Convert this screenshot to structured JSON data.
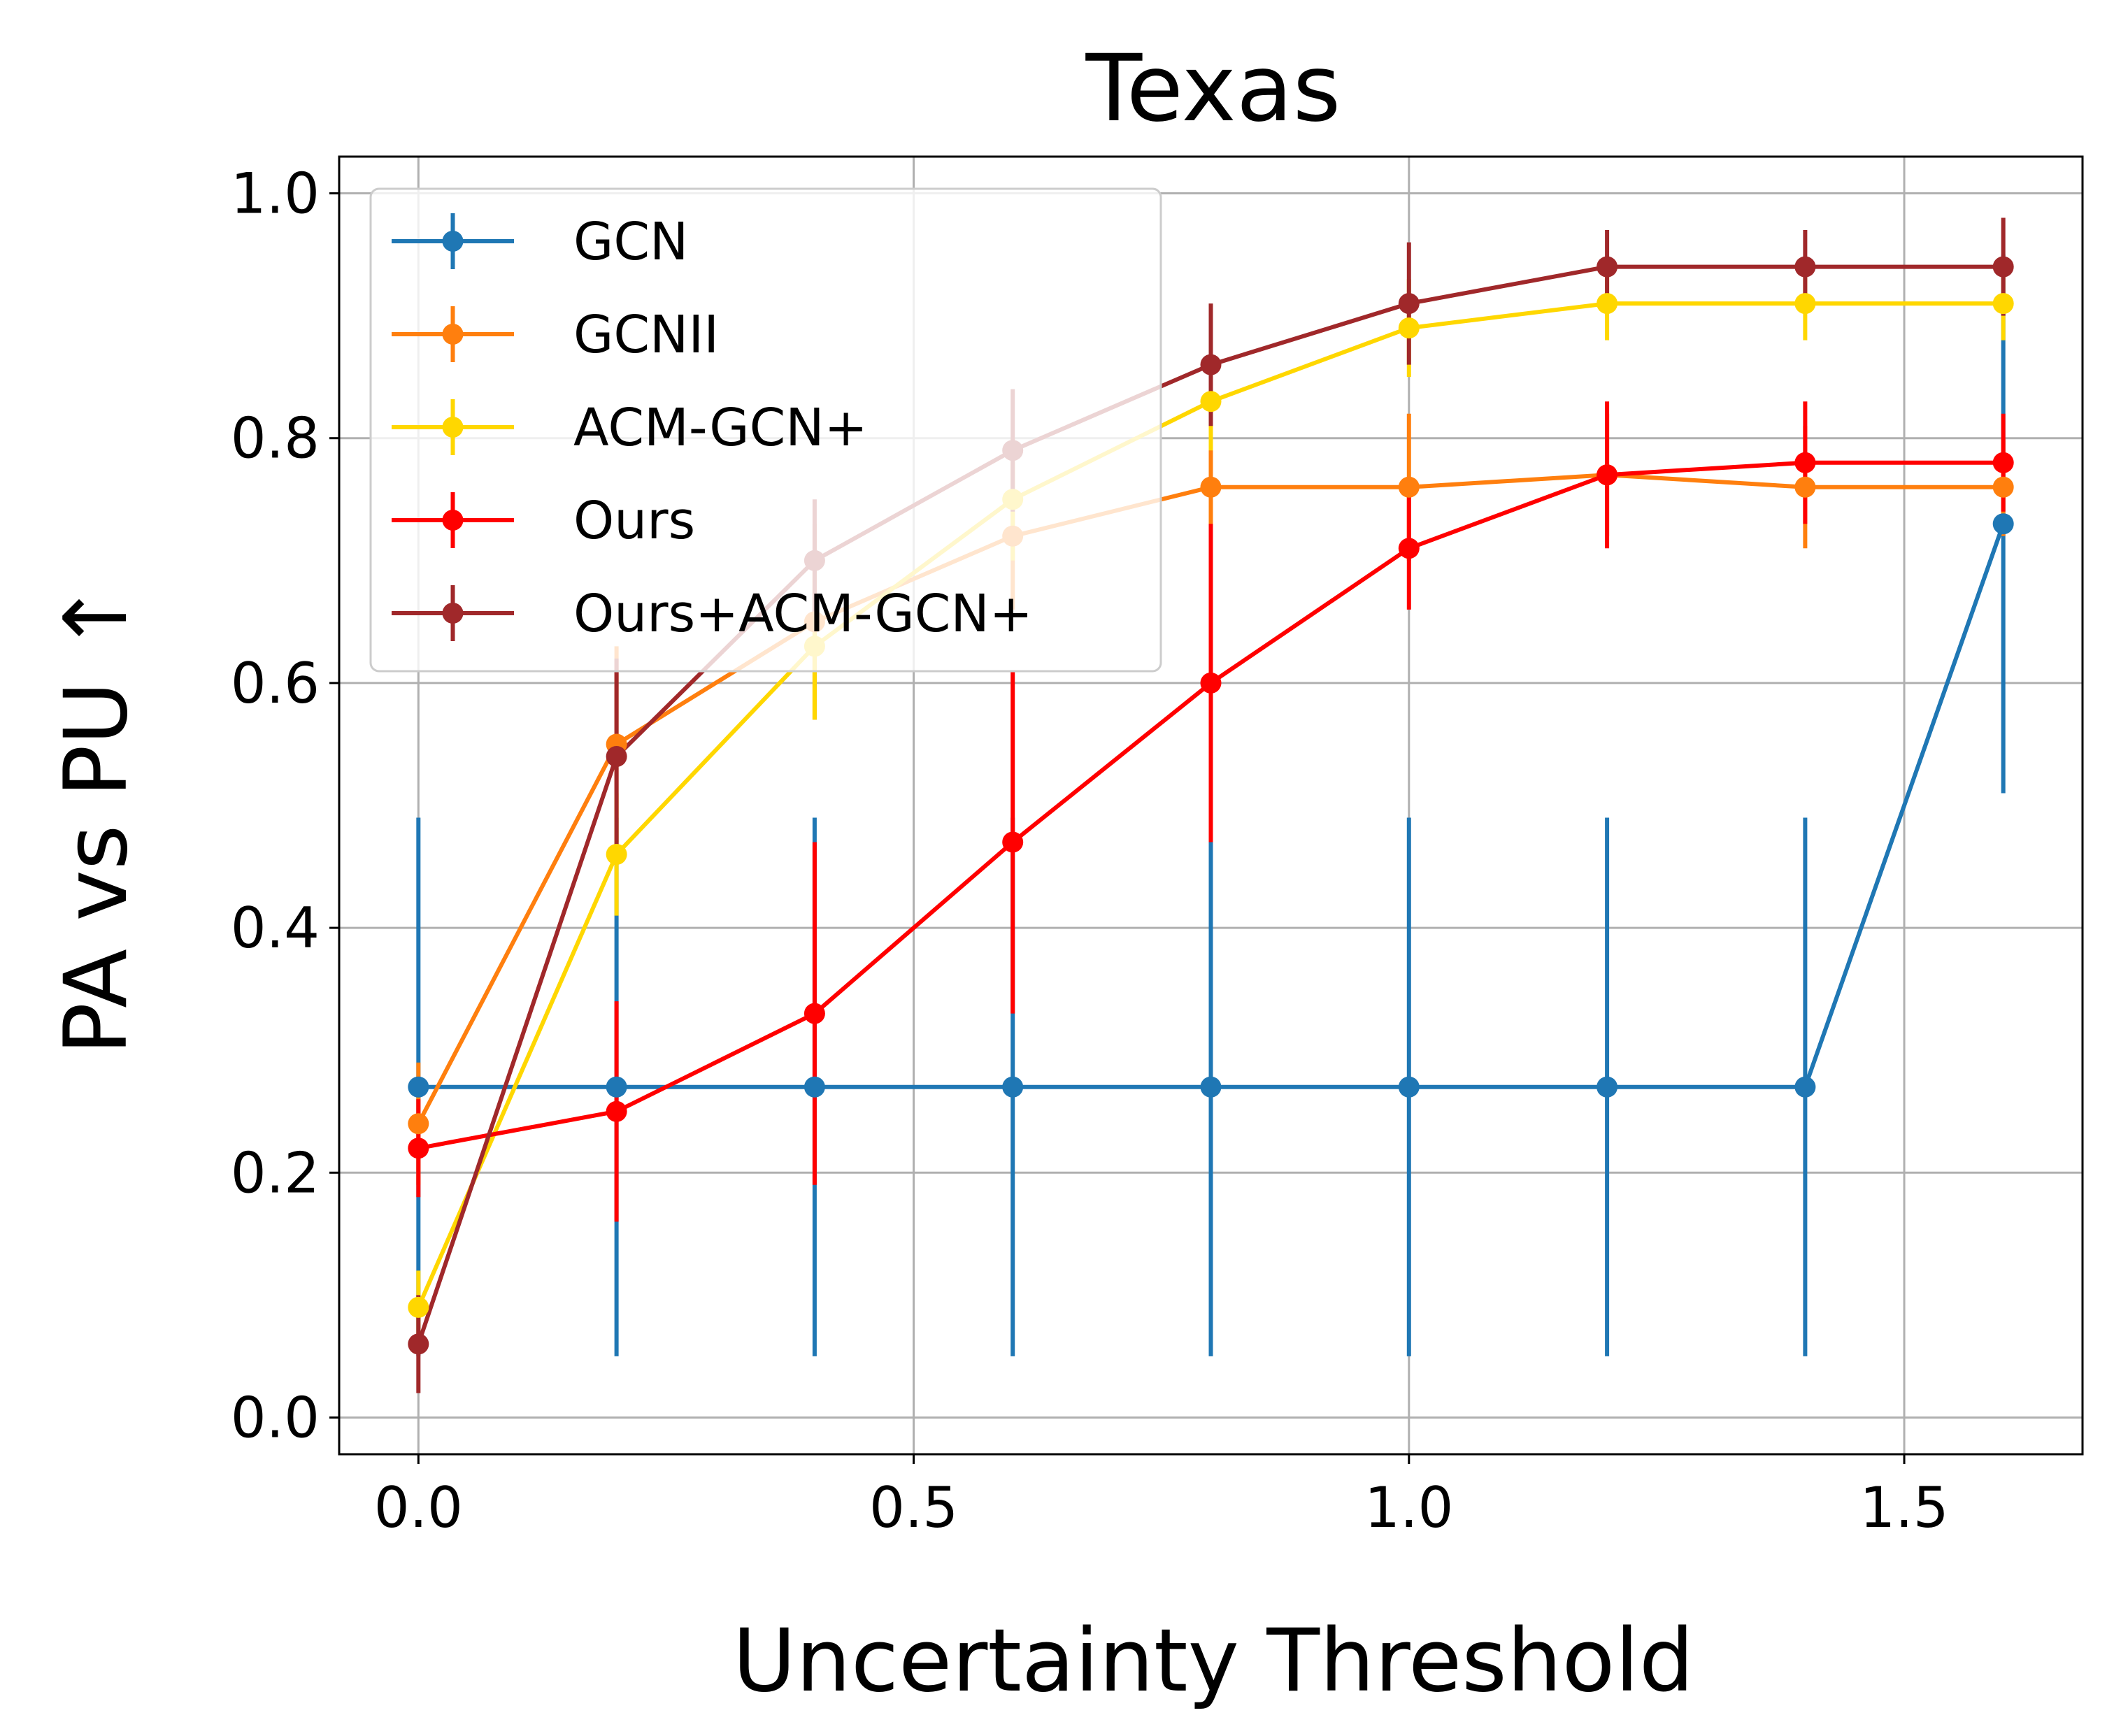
{
  "chart_data": {
    "type": "line",
    "title": "Texas",
    "xlabel": "Uncertainty Threshold",
    "ylabel": "PA vs PU ↑",
    "xlim": [
      -0.08,
      1.68
    ],
    "ylim": [
      -0.03,
      1.03
    ],
    "grid": true,
    "legend_position": "top-left",
    "x": [
      0.0,
      0.2,
      0.4,
      0.6,
      0.8,
      1.0,
      1.2,
      1.4,
      1.6
    ],
    "x_ticks": [
      {
        "value": 0.0,
        "label": "0.0"
      },
      {
        "value": 0.5,
        "label": "0.5"
      },
      {
        "value": 1.0,
        "label": "1.0"
      },
      {
        "value": 1.5,
        "label": "1.5"
      }
    ],
    "y_ticks": [
      {
        "value": 0.0,
        "label": "0.0"
      },
      {
        "value": 0.2,
        "label": "0.2"
      },
      {
        "value": 0.4,
        "label": "0.4"
      },
      {
        "value": 0.6,
        "label": "0.6"
      },
      {
        "value": 0.8,
        "label": "0.8"
      },
      {
        "value": 1.0,
        "label": "1.0"
      }
    ],
    "series": [
      {
        "name": "GCN",
        "color": "#1f77b4",
        "values": [
          0.27,
          0.27,
          0.27,
          0.27,
          0.27,
          0.27,
          0.27,
          0.27,
          0.73
        ],
        "error": [
          0.22,
          0.22,
          0.22,
          0.22,
          0.22,
          0.22,
          0.22,
          0.22,
          0.22
        ]
      },
      {
        "name": "GCNII",
        "color": "#ff7f0e",
        "values": [
          0.24,
          0.55,
          0.65,
          0.72,
          0.76,
          0.76,
          0.77,
          0.76,
          0.76
        ],
        "error": [
          0.05,
          0.08,
          0.08,
          0.06,
          0.04,
          0.06,
          0.05,
          0.05,
          0.04
        ]
      },
      {
        "name": "ACM-GCN+",
        "color": "#ffd700",
        "values": [
          0.09,
          0.46,
          0.63,
          0.75,
          0.83,
          0.89,
          0.91,
          0.91,
          0.91
        ],
        "error": [
          0.03,
          0.05,
          0.06,
          0.05,
          0.04,
          0.04,
          0.03,
          0.03,
          0.03
        ]
      },
      {
        "name": "Ours",
        "color": "#ff0000",
        "values": [
          0.22,
          0.25,
          0.33,
          0.47,
          0.6,
          0.71,
          0.77,
          0.78,
          0.78
        ],
        "error": [
          0.04,
          0.09,
          0.14,
          0.14,
          0.13,
          0.05,
          0.06,
          0.05,
          0.04
        ]
      },
      {
        "name": "Ours+ACM-GCN+",
        "color": "#a0282a",
        "values": [
          0.06,
          0.54,
          0.7,
          0.79,
          0.86,
          0.91,
          0.94,
          0.94,
          0.94
        ],
        "error": [
          0.04,
          0.08,
          0.05,
          0.05,
          0.05,
          0.05,
          0.03,
          0.03,
          0.04
        ]
      }
    ]
  }
}
